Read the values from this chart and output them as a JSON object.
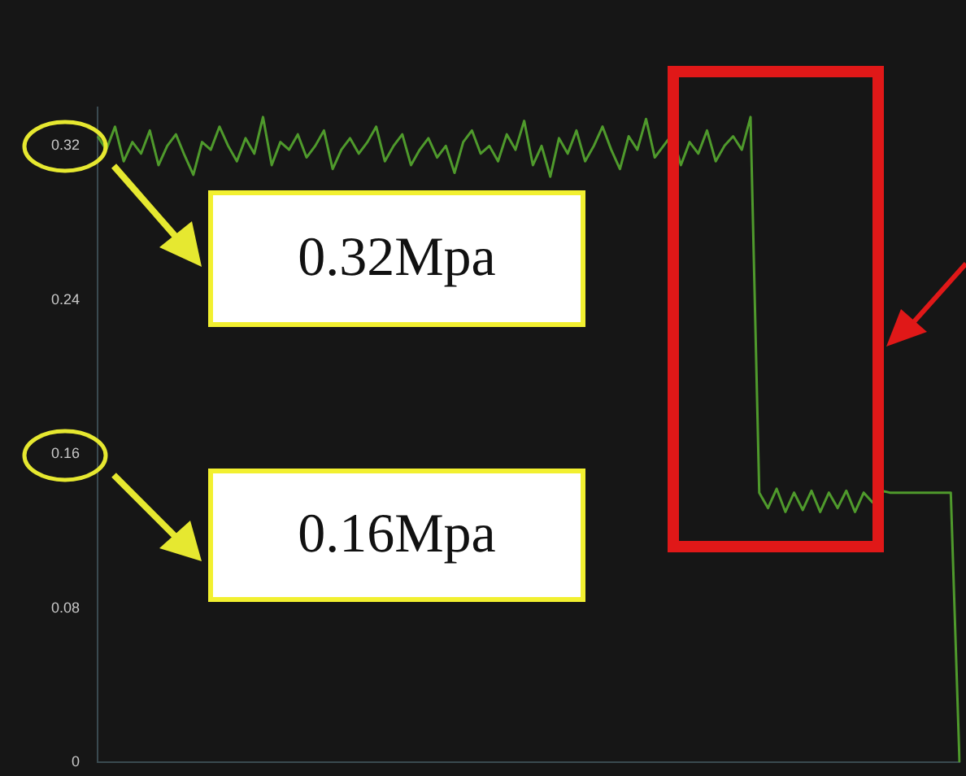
{
  "chart_data": {
    "type": "line",
    "categories": [
      null,
      null,
      null,
      null,
      null,
      null,
      null,
      null,
      null,
      null,
      null,
      null,
      null,
      null,
      null,
      null,
      null,
      null,
      null,
      null,
      null,
      null,
      null,
      null,
      null,
      null,
      null,
      null,
      null,
      null,
      null,
      null,
      null,
      null,
      null,
      null,
      null,
      null,
      null,
      null,
      null,
      null,
      null,
      null,
      null,
      null,
      null,
      null,
      null,
      null,
      null,
      null,
      null,
      null,
      null,
      null,
      null,
      null,
      null,
      null,
      null,
      null,
      null,
      null,
      null,
      null,
      null,
      null,
      null,
      null,
      null,
      null,
      null,
      null,
      null,
      null,
      null,
      null,
      null,
      null,
      null,
      null,
      null,
      null,
      null,
      null,
      null,
      null,
      null,
      null,
      null,
      null,
      null,
      null,
      null,
      null,
      null,
      null,
      null,
      null
    ],
    "series": [
      {
        "color": "#4f9a2c",
        "values": [
          0.325,
          0.318,
          0.33,
          0.312,
          0.322,
          0.316,
          0.328,
          0.31,
          0.32,
          0.326,
          0.315,
          0.305,
          0.322,
          0.318,
          0.33,
          0.32,
          0.312,
          0.324,
          0.316,
          0.335,
          0.31,
          0.322,
          0.318,
          0.326,
          0.314,
          0.32,
          0.328,
          0.308,
          0.318,
          0.324,
          0.316,
          0.322,
          0.33,
          0.312,
          0.32,
          0.326,
          0.31,
          0.318,
          0.324,
          0.314,
          0.32,
          0.306,
          0.322,
          0.328,
          0.316,
          0.32,
          0.312,
          0.326,
          0.318,
          0.333,
          0.31,
          0.32,
          0.304,
          0.324,
          0.316,
          0.328,
          0.312,
          0.32,
          0.33,
          0.318,
          0.308,
          0.325,
          0.318,
          0.334,
          0.314,
          0.32,
          0.326,
          0.31,
          0.322,
          0.316,
          0.328,
          0.312,
          0.32,
          0.325,
          0.318,
          0.335,
          0.14,
          0.132,
          0.142,
          0.13,
          0.14,
          0.131,
          0.141,
          0.13,
          0.14,
          0.132,
          0.141,
          0.13,
          0.14,
          0.135,
          0.141,
          0.14,
          0.14,
          0.14,
          0.14,
          0.14,
          0.14,
          0.14,
          0.14,
          0
        ]
      }
    ],
    "ylim": [
      0,
      0.34
    ],
    "yticks": [
      0,
      0.08,
      0.16,
      0.24,
      0.32
    ],
    "tick_labels": "y",
    "grid": false,
    "legend": false,
    "marker": "none",
    "line_style": "solid",
    "annotations": [
      "0.32Mpa",
      "0.16Mpa"
    ]
  }
}
